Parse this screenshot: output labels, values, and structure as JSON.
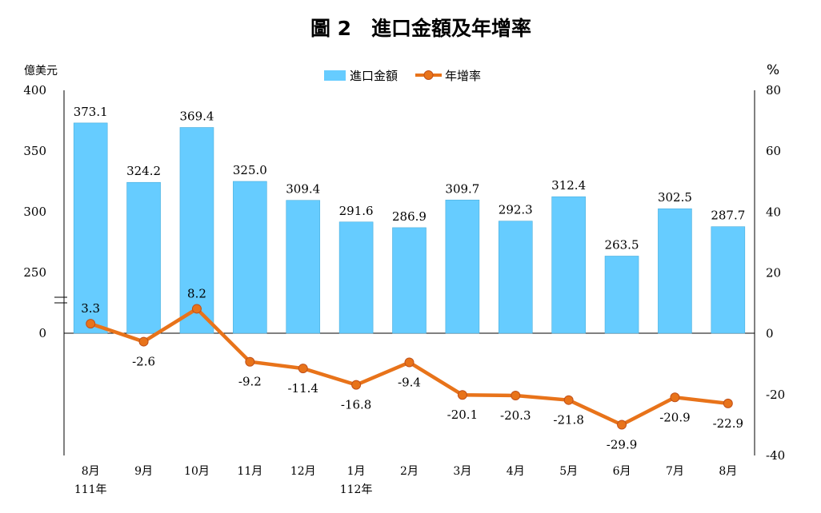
{
  "chart_data": {
    "type": "bar+line",
    "title": "圖 2　進口金額及年增率",
    "left_unit": "億美元",
    "right_unit": "%",
    "categories": [
      "8月",
      "9月",
      "10月",
      "11月",
      "12月",
      "1月",
      "2月",
      "3月",
      "4月",
      "5月",
      "6月",
      "7月",
      "8月"
    ],
    "year_labels": [
      {
        "index": 0,
        "text": "111年"
      },
      {
        "index": 5,
        "text": "112年"
      }
    ],
    "series": [
      {
        "name": "進口金額",
        "kind": "bar",
        "axis": "left",
        "color": "#66ccff",
        "values": [
          373.1,
          324.2,
          369.4,
          325.0,
          309.4,
          291.6,
          286.9,
          309.7,
          292.3,
          312.4,
          263.5,
          302.5,
          287.7
        ],
        "labels": [
          "373.1",
          "324.2",
          "369.4",
          "325.0",
          "309.4",
          "291.6",
          "286.9",
          "309.7",
          "292.3",
          "312.4",
          "263.5",
          "302.5",
          "287.7"
        ]
      },
      {
        "name": "年增率",
        "kind": "line",
        "axis": "right",
        "color": "#e8731a",
        "values": [
          3.3,
          -2.6,
          8.2,
          -9.2,
          -11.4,
          -16.8,
          -9.4,
          -20.1,
          -20.3,
          -21.8,
          -29.9,
          -20.9,
          -22.9
        ],
        "labels": [
          "3.3",
          "-2.6",
          "8.2",
          "-9.2",
          "-11.4",
          "-16.8",
          "-9.4",
          "-20.1",
          "-20.3",
          "-21.8",
          "-29.9",
          "-20.9",
          "-22.9"
        ]
      }
    ],
    "left_axis": {
      "ticks": [
        "400",
        "350",
        "300",
        "250",
        "0"
      ],
      "broken": true,
      "range_upper": [
        200,
        400
      ],
      "zero_label": "0"
    },
    "right_axis": {
      "ticks": [
        "80",
        "60",
        "40",
        "20",
        "0",
        "-20",
        "-40"
      ],
      "range": [
        -40,
        80
      ]
    },
    "grid": false,
    "legend_position": "top-center"
  }
}
